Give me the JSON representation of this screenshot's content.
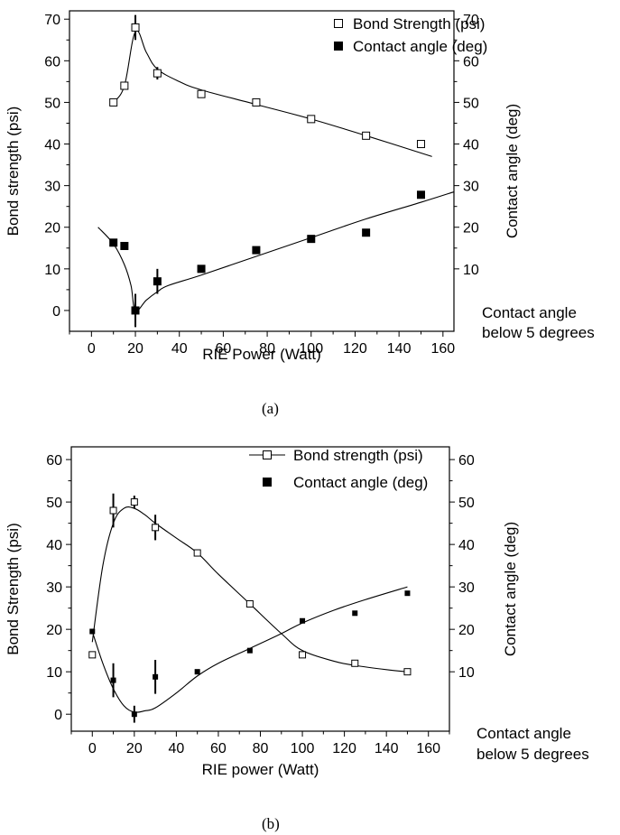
{
  "chart_data": [
    {
      "type": "scatter",
      "caption": "(a)",
      "xlabel": "RIE Power (Watt)",
      "ylabel": "Bond strength (psi)",
      "y2label": "Contact angle (deg)",
      "xlim": [
        -10,
        165
      ],
      "ylim": [
        -5,
        72
      ],
      "xticks": [
        0,
        20,
        40,
        60,
        80,
        100,
        120,
        140,
        160
      ],
      "yticks": [
        0,
        10,
        20,
        30,
        40,
        50,
        60,
        70
      ],
      "y2ticks": [
        10,
        20,
        30,
        40,
        50,
        60,
        70
      ],
      "note": [
        "Contact angle",
        "below 5 degrees"
      ],
      "legend_position": "top-right",
      "grid": false,
      "series": [
        {
          "name": "Bond Strength (psi)",
          "marker": "open-square",
          "x": [
            10,
            15,
            20,
            30,
            50,
            75,
            100,
            125,
            150
          ],
          "y": [
            50,
            54,
            68,
            57,
            52,
            50,
            46,
            42,
            40
          ],
          "error": [
            0,
            0,
            3,
            1.5,
            0,
            0,
            0,
            0,
            0
          ],
          "fit_curve": {
            "x": [
              10,
              15,
              20,
              25,
              30,
              40,
              50,
              75,
              100,
              125,
              155
            ],
            "y": [
              50,
              54,
              67,
              62,
              58,
              55,
              53,
              49.5,
              46,
              42,
              37
            ]
          }
        },
        {
          "name": "Contact angle (deg)",
          "marker": "filled-square",
          "x": [
            10,
            15,
            20,
            30,
            50,
            75,
            100,
            125,
            150
          ],
          "y": [
            16.3,
            15.5,
            0,
            7,
            10,
            14.5,
            17.2,
            18.7,
            27.8
          ],
          "error": [
            0,
            0,
            4,
            3,
            0,
            0,
            0,
            0,
            0
          ],
          "fit_curve": {
            "x": [
              3,
              10,
              15,
              18,
              20,
              25,
              30,
              35,
              50,
              75,
              100,
              125,
              150,
              165
            ],
            "y": [
              20,
              16,
              11,
              6,
              0,
              2.5,
              4.5,
              6,
              8.5,
              13,
              17.5,
              22,
              26,
              28.5
            ]
          }
        }
      ]
    },
    {
      "type": "scatter",
      "caption": "(b)",
      "xlabel": "RIE power (Watt)",
      "ylabel": "Bond Strength (psi)",
      "y2label": "Contact angle (deg)",
      "xlim": [
        -10,
        170
      ],
      "ylim": [
        -4,
        63
      ],
      "xticks": [
        0,
        20,
        40,
        60,
        80,
        100,
        120,
        140,
        160
      ],
      "yticks": [
        0,
        10,
        20,
        30,
        40,
        50,
        60
      ],
      "y2ticks": [
        10,
        20,
        30,
        40,
        50,
        60
      ],
      "note": [
        "Contact angle",
        "below 5 degrees"
      ],
      "legend_position": "top-right",
      "grid": false,
      "series": [
        {
          "name": "Bond strength (psi)",
          "marker": "open-square",
          "x": [
            0,
            10,
            20,
            30,
            50,
            75,
            100,
            125,
            150
          ],
          "y": [
            14,
            48,
            50,
            44,
            38,
            26,
            14,
            12,
            10
          ],
          "error": [
            0,
            4,
            1.5,
            3,
            0,
            0,
            0,
            0,
            0
          ],
          "fit_curve": {
            "x": [
              0,
              5,
              10,
              15,
              20,
              25,
              30,
              40,
              50,
              60,
              75,
              90,
              100,
              115,
              125,
              140,
              150
            ],
            "y": [
              17,
              35,
              45,
              48.5,
              48.5,
              47,
              45,
              41.5,
              38,
              33,
              26,
              19,
              15,
              12.5,
              11.5,
              10.5,
              10
            ]
          }
        },
        {
          "name": "Contact angle (deg)",
          "marker": "filled-square",
          "x": [
            0,
            10,
            20,
            30,
            50,
            75,
            100,
            125,
            150
          ],
          "y": [
            19.5,
            8,
            0,
            8.8,
            10,
            15,
            22,
            23.8,
            28.5
          ],
          "error": [
            0,
            4,
            2,
            4,
            0,
            0,
            0,
            0,
            0
          ],
          "fit_curve": {
            "x": [
              0,
              5,
              10,
              15,
              20,
              25,
              30,
              40,
              50,
              60,
              75,
              90,
              100,
              115,
              130,
              150
            ],
            "y": [
              19.5,
              12,
              6,
              2,
              0.5,
              0.8,
              1.5,
              5,
              9,
              12,
              15.5,
              19,
              21.5,
              24.5,
              27,
              30
            ]
          }
        }
      ]
    }
  ]
}
